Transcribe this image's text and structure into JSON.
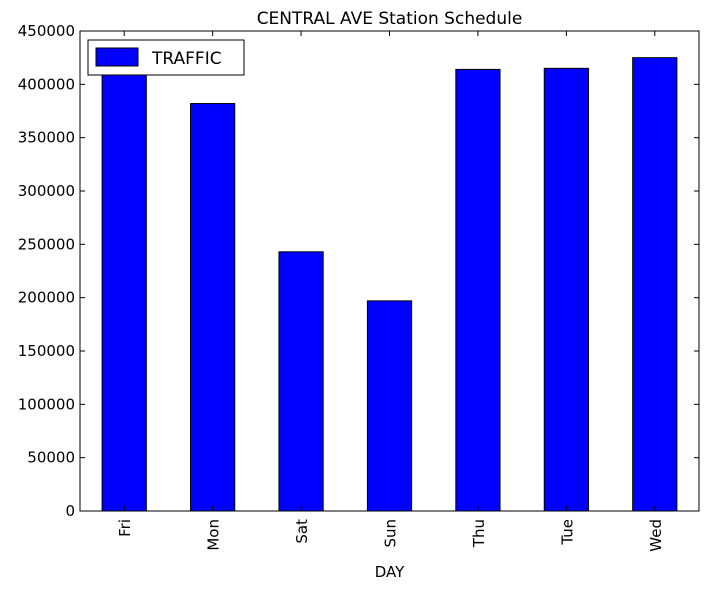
{
  "chart_data": {
    "type": "bar",
    "title": "CENTRAL AVE Station Schedule",
    "xlabel": "DAY",
    "ylabel": "",
    "categories": [
      "Fri",
      "Mon",
      "Sat",
      "Sun",
      "Thu",
      "Tue",
      "Wed"
    ],
    "series": [
      {
        "name": "TRAFFIC",
        "values": [
          410000,
          382000,
          243000,
          197000,
          414000,
          415000,
          425000
        ],
        "color": "#0000ff"
      }
    ],
    "ylim": [
      0,
      450000
    ],
    "yticks": [
      0,
      50000,
      100000,
      150000,
      200000,
      250000,
      300000,
      350000,
      400000,
      450000
    ],
    "grid": false,
    "legend_position": "top-left"
  }
}
